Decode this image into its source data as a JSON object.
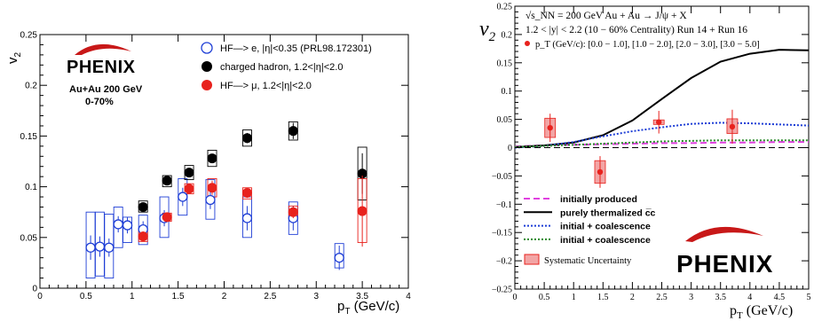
{
  "chart_data": [
    {
      "type": "scatter",
      "xlabel": "p_T (GeV/c)",
      "ylabel": "v_2",
      "xlim": [
        0,
        4
      ],
      "ylim": [
        0,
        0.25
      ],
      "xticks": [
        0,
        0.5,
        1,
        1.5,
        2,
        2.5,
        3,
        3.5,
        4
      ],
      "xtick_labels": [
        "0",
        "0.5",
        "1",
        "1.5",
        "2",
        "2.5",
        "3",
        "3.5",
        "4"
      ],
      "yticks": [
        0,
        0.05,
        0.1,
        0.15,
        0.2,
        0.25
      ],
      "ytick_labels": [
        "0",
        "0.05",
        "0.1",
        "0.15",
        "0.2",
        "0.25"
      ],
      "annotations": [
        "PHENIX",
        "Au+Au 200 GeV",
        "0-70%"
      ],
      "legend_position": "top-right",
      "series": [
        {
          "name": "HF—> e, |η|<0.35 (PRL98.172301)",
          "marker": "open-circle",
          "color": "#1f3fd6",
          "points": [
            {
              "x": 0.55,
              "y": 0.04,
              "err": 0.012,
              "sys": [
                0.01,
                0.075
              ]
            },
            {
              "x": 0.65,
              "y": 0.041,
              "err": 0.01,
              "sys": [
                0.012,
                0.075
              ]
            },
            {
              "x": 0.75,
              "y": 0.04,
              "err": 0.009,
              "sys": [
                0.01,
                0.073
              ]
            },
            {
              "x": 0.85,
              "y": 0.063,
              "err": 0.008,
              "sys": [
                0.04,
                0.08
              ]
            },
            {
              "x": 0.95,
              "y": 0.062,
              "err": 0.008,
              "sys": [
                0.045,
                0.07
              ]
            },
            {
              "x": 1.12,
              "y": 0.058,
              "err": 0.008,
              "sys": [
                0.043,
                0.072
              ]
            },
            {
              "x": 1.35,
              "y": 0.069,
              "err": 0.008,
              "sys": [
                0.05,
                0.09
              ]
            },
            {
              "x": 1.55,
              "y": 0.09,
              "err": 0.009,
              "sys": [
                0.072,
                0.108
              ]
            },
            {
              "x": 1.85,
              "y": 0.087,
              "err": 0.009,
              "sys": [
                0.068,
                0.107
              ]
            },
            {
              "x": 2.25,
              "y": 0.069,
              "err": 0.012,
              "sys": [
                0.05,
                0.09
              ]
            },
            {
              "x": 2.75,
              "y": 0.069,
              "err": 0.012,
              "sys": [
                0.053,
                0.085
              ]
            },
            {
              "x": 3.25,
              "y": 0.03,
              "err": 0.012,
              "sys": [
                0.02,
                0.044
              ]
            }
          ]
        },
        {
          "name": "charged hadron, 1.2<|η|<2.0",
          "marker": "filled-circle",
          "color": "#000000",
          "points": [
            {
              "x": 1.12,
              "y": 0.08,
              "err": 0.003,
              "sys": [
                0.075,
                0.086
              ]
            },
            {
              "x": 1.38,
              "y": 0.106,
              "err": 0.003,
              "sys": [
                0.1,
                0.111
              ]
            },
            {
              "x": 1.62,
              "y": 0.114,
              "err": 0.003,
              "sys": [
                0.107,
                0.121
              ]
            },
            {
              "x": 1.87,
              "y": 0.128,
              "err": 0.004,
              "sys": [
                0.12,
                0.136
              ]
            },
            {
              "x": 2.25,
              "y": 0.148,
              "err": 0.005,
              "sys": [
                0.14,
                0.156
              ]
            },
            {
              "x": 2.75,
              "y": 0.155,
              "err": 0.008,
              "sys": [
                0.146,
                0.164
              ]
            },
            {
              "x": 3.5,
              "y": 0.113,
              "err": 0.02,
              "sys": [
                0.087,
                0.139
              ]
            }
          ]
        },
        {
          "name": "HF—> μ, 1.2<|η|<2.0",
          "marker": "filled-circle",
          "color": "#e8221d",
          "points": [
            {
              "x": 1.12,
              "y": 0.051,
              "err": 0.005,
              "sys": [
                0.046,
                0.056
              ]
            },
            {
              "x": 1.38,
              "y": 0.07,
              "err": 0.004,
              "sys": [
                0.066,
                0.074
              ]
            },
            {
              "x": 1.62,
              "y": 0.098,
              "err": 0.004,
              "sys": [
                0.093,
                0.103
              ]
            },
            {
              "x": 1.87,
              "y": 0.099,
              "err": 0.007,
              "sys": [
                0.09,
                0.108
              ]
            },
            {
              "x": 2.25,
              "y": 0.094,
              "err": 0.005,
              "sys": [
                0.088,
                0.099
              ]
            },
            {
              "x": 2.75,
              "y": 0.075,
              "err": 0.006,
              "sys": [
                0.069,
                0.081
              ]
            },
            {
              "x": 3.5,
              "y": 0.076,
              "err": 0.035,
              "sys": [
                0.045,
                0.108
              ]
            }
          ]
        }
      ]
    },
    {
      "type": "line",
      "xlabel": "p_T (GeV/c)",
      "ylabel": "v_2",
      "xlim": [
        0,
        5
      ],
      "ylim": [
        -0.25,
        0.25
      ],
      "xticks": [
        0,
        0.5,
        1,
        1.5,
        2,
        2.5,
        3,
        3.5,
        4,
        4.5,
        5
      ],
      "xtick_labels": [
        "0",
        "0.5",
        "1",
        "1.5",
        "2",
        "2.5",
        "3",
        "3.5",
        "4",
        "4.5",
        "5"
      ],
      "yticks": [
        -0.25,
        -0.2,
        -0.15,
        -0.1,
        -0.05,
        0,
        0.05,
        0.1,
        0.15,
        0.2,
        0.25
      ],
      "ytick_labels": [
        "−0.25",
        "−0.2",
        "−0.15",
        "−0.1",
        "−0.05",
        "0",
        "0.05",
        "0.1",
        "0.15",
        "0.2",
        "0.25"
      ],
      "header_lines": [
        "√s_NN = 200 GeV Au + Au → J/ψ + X",
        "1.2 < |y| < 2.2 (10 − 60% Centrality) Run 14 + Run 16",
        "p_T (GeV/c): [0.0 − 1.0], [1.0 − 2.0], [2.0 − 3.0], [3.0 − 5.0]"
      ],
      "logo_text": "PHENIX",
      "legend_position": "bottom-left",
      "points": {
        "color": "#e8221d",
        "values": [
          {
            "x": 0.6,
            "y": 0.035,
            "err": 0.025,
            "sys": [
              0.018,
              0.052
            ]
          },
          {
            "x": 1.45,
            "y": -0.043,
            "err": 0.028,
            "sys": [
              -0.063,
              -0.023
            ]
          },
          {
            "x": 2.45,
            "y": 0.045,
            "err": 0.02,
            "sys": [
              0.041,
              0.049
            ]
          },
          {
            "x": 3.7,
            "y": 0.037,
            "err": 0.03,
            "sys": [
              0.025,
              0.051
            ]
          }
        ]
      },
      "series": [
        {
          "name": "initially produced",
          "color": "#e040e0",
          "style": "dashed",
          "x": [
            0,
            0.5,
            1,
            1.5,
            2,
            2.5,
            3,
            3.5,
            4,
            4.5,
            5
          ],
          "y": [
            0.002,
            0.004,
            0.005,
            0.006,
            0.007,
            0.008,
            0.008,
            0.009,
            0.009,
            0.01,
            0.01
          ]
        },
        {
          "name": "purely thermalized c̅c",
          "color": "#000000",
          "style": "solid",
          "x": [
            0,
            0.5,
            1,
            1.5,
            2,
            2.5,
            3,
            3.5,
            4,
            4.5,
            5
          ],
          "y": [
            0.001,
            0.004,
            0.009,
            0.022,
            0.048,
            0.086,
            0.123,
            0.152,
            0.166,
            0.173,
            0.172
          ]
        },
        {
          "name": "initial + coalescence",
          "color": "#1f3fd6",
          "style": "dotted",
          "x": [
            0,
            0.5,
            1,
            1.5,
            2,
            2.5,
            3,
            3.5,
            4,
            4.5,
            5
          ],
          "y": [
            0.0,
            0.003,
            0.01,
            0.02,
            0.029,
            0.036,
            0.042,
            0.044,
            0.043,
            0.041,
            0.039
          ]
        },
        {
          "name": "initial + coalescence",
          "color": "#2a8a2a",
          "style": "dotted",
          "x": [
            0,
            0.5,
            1,
            1.5,
            2,
            2.5,
            3,
            3.5,
            4,
            4.5,
            5
          ],
          "y": [
            0.001,
            0.003,
            0.005,
            0.007,
            0.009,
            0.011,
            0.012,
            0.013,
            0.013,
            0.013,
            0.013
          ]
        },
        {
          "name": "zero",
          "color": "#000000",
          "style": "dashed",
          "x": [
            0,
            5
          ],
          "y": [
            0,
            0
          ]
        }
      ],
      "systematic_label": "Systematic Uncertainty"
    }
  ]
}
